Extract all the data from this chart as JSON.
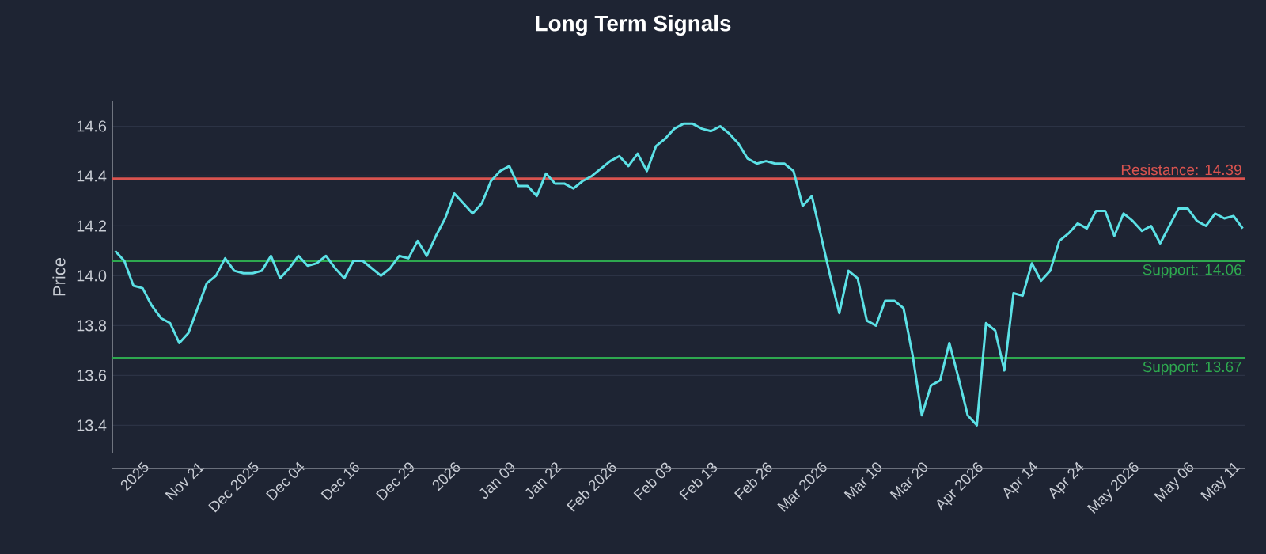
{
  "chart_data": {
    "type": "line",
    "title": "Long Term Signals",
    "ylabel": "Price",
    "categories": [
      null,
      null,
      null,
      "2025",
      null,
      null,
      null,
      null,
      null,
      "Nov 21",
      null,
      null,
      null,
      null,
      null,
      "Dec 2025",
      null,
      null,
      null,
      null,
      "Dec 04",
      null,
      null,
      null,
      null,
      null,
      "Dec 16",
      null,
      null,
      null,
      null,
      null,
      "Dec 29",
      null,
      null,
      null,
      null,
      "2026",
      null,
      null,
      null,
      null,
      null,
      "Jan 09",
      null,
      null,
      null,
      null,
      "Jan 22",
      null,
      null,
      null,
      null,
      null,
      "Feb 2026",
      null,
      null,
      null,
      null,
      null,
      "Feb 03",
      null,
      null,
      null,
      null,
      "Feb 13",
      null,
      null,
      null,
      null,
      null,
      "Feb 26",
      null,
      null,
      null,
      null,
      null,
      "Mar 2026",
      null,
      null,
      null,
      null,
      null,
      "Mar 10",
      null,
      null,
      null,
      null,
      "Mar 20",
      null,
      null,
      null,
      null,
      null,
      "Apr 2026",
      null,
      null,
      null,
      null,
      null,
      "Apr 14",
      null,
      null,
      null,
      null,
      "Apr 24",
      null,
      null,
      null,
      null,
      null,
      "May 2026",
      null,
      null,
      null,
      null,
      null,
      "May 06",
      null,
      null,
      null,
      null,
      "May 11",
      null
    ],
    "series": [
      {
        "color": "#5ce1e6",
        "values": [
          14.1,
          14.06,
          13.96,
          13.95,
          13.88,
          13.83,
          13.81,
          13.73,
          13.77,
          13.87,
          13.97,
          14.0,
          14.07,
          14.02,
          14.01,
          14.01,
          14.02,
          14.08,
          13.99,
          14.03,
          14.08,
          14.04,
          14.05,
          14.08,
          14.03,
          13.99,
          14.06,
          14.06,
          14.03,
          14.0,
          14.03,
          14.08,
          14.07,
          14.14,
          14.08,
          14.16,
          14.23,
          14.33,
          14.29,
          14.25,
          14.29,
          14.38,
          14.42,
          14.44,
          14.36,
          14.36,
          14.32,
          14.41,
          14.37,
          14.37,
          14.35,
          14.38,
          14.4,
          14.43,
          14.46,
          14.48,
          14.44,
          14.49,
          14.42,
          14.52,
          14.55,
          14.59,
          14.61,
          14.61,
          14.59,
          14.58,
          14.6,
          14.57,
          14.53,
          14.47,
          14.45,
          14.46,
          14.45,
          14.45,
          14.42,
          14.28,
          14.32,
          14.16,
          14.0,
          13.85,
          14.02,
          13.99,
          13.82,
          13.8,
          13.9,
          13.9,
          13.87,
          13.68,
          13.44,
          13.56,
          13.58,
          13.73,
          13.59,
          13.44,
          13.4,
          13.81,
          13.78,
          13.62,
          13.93,
          13.92,
          14.05,
          13.98,
          14.02,
          14.14,
          14.17,
          14.21,
          14.19,
          14.26,
          14.26,
          14.16,
          14.25,
          14.22,
          14.18,
          14.2,
          14.13,
          14.2,
          14.27,
          14.27,
          14.22,
          14.2,
          14.25,
          14.23,
          14.24,
          14.19
        ]
      }
    ],
    "ylim": [
      13.29,
      14.7
    ],
    "yticks": [
      13.4,
      13.6,
      13.8,
      {
        "value": 14.0,
        "label": "14.0"
      },
      14.2,
      14.4,
      14.6
    ],
    "grid": "y",
    "ref_lines": [
      {
        "axis": "y",
        "value": 14.39,
        "label": "Resistance: 14.39",
        "color": "#d9534f"
      },
      {
        "axis": "y",
        "value": 14.06,
        "label": "Support: 14.06",
        "color": "#2ea84f"
      },
      {
        "axis": "y",
        "value": 13.67,
        "label": "Support: 13.67",
        "color": "#2ea84f"
      }
    ]
  }
}
